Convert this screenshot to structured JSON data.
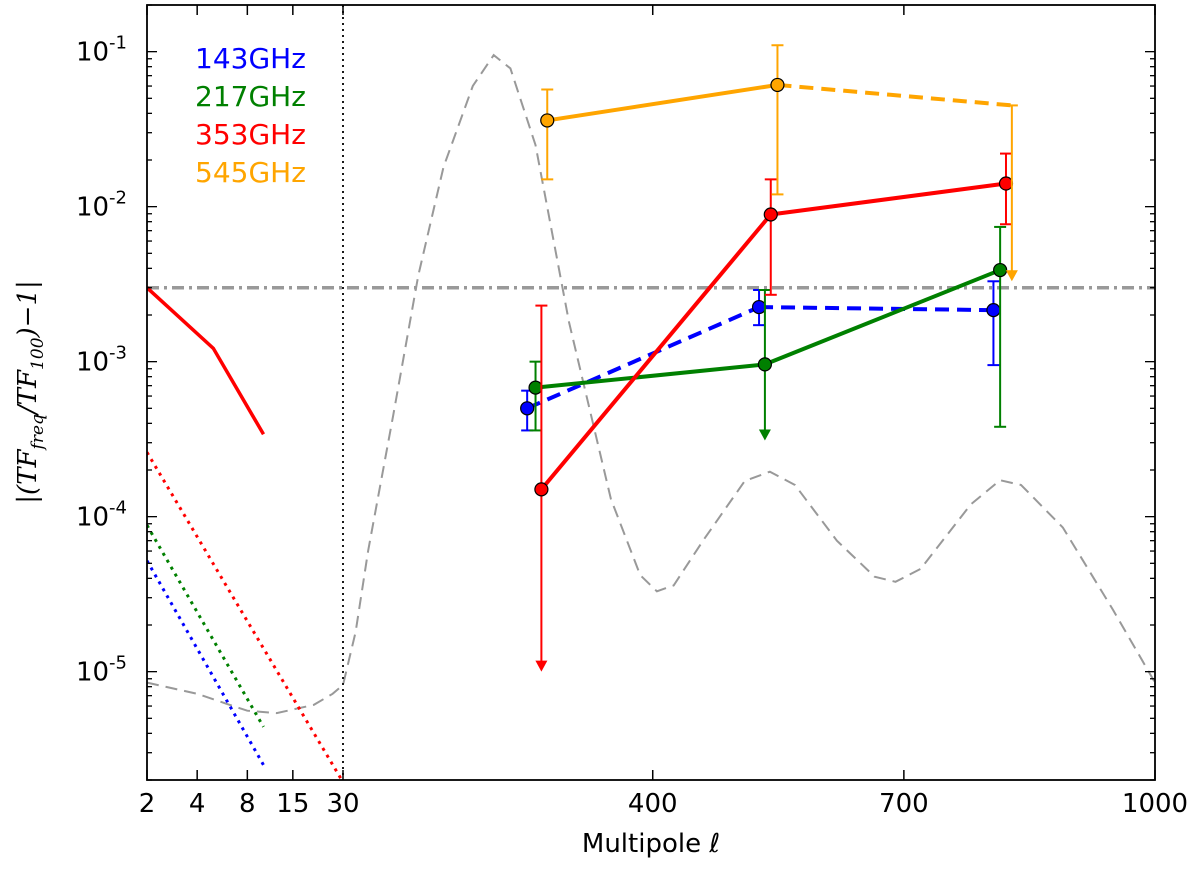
{
  "chart_data": {
    "type": "line",
    "title": "",
    "xlabel": "Multipole ℓ",
    "ylabel": "|(TF_freq/TF_100) − 1|",
    "ylabel_parts": {
      "open": "|(",
      "num": "TF",
      "num_sub": "freq",
      "slash": "/",
      "den": "TF",
      "den_sub": "100",
      "close": ")−1|"
    },
    "x_scale": "piecewise log(2–30) / linear(30–1000)",
    "xlim": [
      2,
      1000
    ],
    "ylim": [
      2e-06,
      0.2
    ],
    "y_scale": "log",
    "x_ticks": [
      {
        "value": 2,
        "label": "2"
      },
      {
        "value": 4,
        "label": "4"
      },
      {
        "value": 8,
        "label": "8"
      },
      {
        "value": 15,
        "label": "15"
      },
      {
        "value": 30,
        "label": "30"
      },
      {
        "value": 400,
        "label": "400"
      },
      {
        "value": 700,
        "label": "700"
      },
      {
        "value": 1000,
        "label": "1000"
      }
    ],
    "y_ticks": [
      {
        "value": 0.1,
        "base": "10",
        "exp": "-1"
      },
      {
        "value": 0.01,
        "base": "10",
        "exp": "-2"
      },
      {
        "value": 0.001,
        "base": "10",
        "exp": "-3"
      },
      {
        "value": 0.0001,
        "base": "10",
        "exp": "-4"
      },
      {
        "value": 1e-05,
        "base": "10",
        "exp": "-5"
      }
    ],
    "legend": [
      {
        "label": "143GHz",
        "color": "#0000ff"
      },
      {
        "label": "217GHz",
        "color": "#008000"
      },
      {
        "label": "353GHz",
        "color": "#ff0000"
      },
      {
        "label": "545GHz",
        "color": "#ffa500"
      }
    ],
    "threshold": {
      "value": 0.003,
      "color": "#999999",
      "style": "dashdot"
    },
    "lowell_divider": {
      "x": 30,
      "color": "#000000",
      "style": "dotted"
    },
    "series": [
      {
        "name": "143GHz",
        "color": "#0000ff",
        "style": "dashed",
        "points": [
          {
            "x": 250,
            "y": 0.0005,
            "lo": 0.00036,
            "hi": 0.00065
          },
          {
            "x": 527,
            "y": 0.00225,
            "lo": 0.00172,
            "hi": 0.0029
          },
          {
            "x": 807,
            "y": 0.00215,
            "lo": 0.00095,
            "hi": 0.0033
          }
        ]
      },
      {
        "name": "217GHz",
        "color": "#008000",
        "style": "solid",
        "points": [
          {
            "x": 260,
            "y": 0.00068,
            "lo": 0.00036,
            "hi": 0.001
          },
          {
            "x": 534,
            "y": 0.00096,
            "upper_limit": true,
            "lo": 0.00031,
            "hi": 0.0029
          },
          {
            "x": 815,
            "y": 0.0039,
            "lo": 0.00038,
            "hi": 0.0074
          }
        ]
      },
      {
        "name": "353GHz",
        "color": "#ff0000",
        "style": "solid",
        "points": [
          {
            "x": 267,
            "y": 0.00015,
            "upper_limit": true,
            "lo": 1e-05,
            "hi": 0.0023
          },
          {
            "x": 541,
            "y": 0.0089,
            "lo": 0.0027,
            "hi": 0.015
          },
          {
            "x": 822,
            "y": 0.0141,
            "lo": 0.0077,
            "hi": 0.022
          }
        ]
      },
      {
        "name": "545GHz",
        "color": "#ffa500",
        "segment_styles": [
          "solid",
          "dashed"
        ],
        "points": [
          {
            "x": 274,
            "y": 0.036,
            "lo": 0.015,
            "hi": 0.057
          },
          {
            "x": 549,
            "y": 0.061,
            "lo": 0.012,
            "hi": 0.11
          },
          {
            "x": 829,
            "y": 0.045,
            "no_marker": true,
            "upper_limit": true,
            "lo": 0.0033,
            "hi": 0.045
          }
        ]
      }
    ],
    "lowell_lines": [
      {
        "name": "353GHz low-ℓ",
        "color": "#ff0000",
        "style": "solid",
        "x": [
          2,
          5,
          10
        ],
        "y": [
          0.003,
          0.00122,
          0.00034
        ]
      },
      {
        "name": "353GHz low-ℓ model",
        "color": "#ff0000",
        "style": "dotted",
        "x": [
          2,
          31
        ],
        "y": [
          0.00026,
          1.9e-06
        ]
      },
      {
        "name": "217GHz low-ℓ model",
        "color": "#008000",
        "style": "dotted",
        "x": [
          2,
          10
        ],
        "y": [
          8.8e-05,
          4.4e-06
        ]
      },
      {
        "name": "143GHz low-ℓ model",
        "color": "#0000ff",
        "style": "dotted",
        "x": [
          2,
          10
        ],
        "y": [
          5.2e-05,
          2.5e-06
        ]
      }
    ],
    "gray_curve": {
      "name": "spectrum template",
      "color": "#999999",
      "style": "dashed",
      "points": [
        [
          2,
          8.5e-06
        ],
        [
          4,
          7.2e-06
        ],
        [
          6,
          6.2e-06
        ],
        [
          8,
          5.6e-06
        ],
        [
          12,
          5.4e-06
        ],
        [
          20,
          6.1e-06
        ],
        [
          26,
          7.2e-06
        ],
        [
          30,
          8.2e-06
        ],
        [
          45,
          1.8e-05
        ],
        [
          60,
          6e-05
        ],
        [
          90,
          0.00045
        ],
        [
          120,
          0.0036
        ],
        [
          150,
          0.018
        ],
        [
          185,
          0.06
        ],
        [
          210,
          0.095
        ],
        [
          230,
          0.078
        ],
        [
          260,
          0.025
        ],
        [
          300,
          0.0018
        ],
        [
          350,
          0.00013
        ],
        [
          385,
          4.2e-05
        ],
        [
          405,
          3.3e-05
        ],
        [
          425,
          3.6e-05
        ],
        [
          460,
          7e-05
        ],
        [
          510,
          0.00017
        ],
        [
          540,
          0.000195
        ],
        [
          570,
          0.00016
        ],
        [
          620,
          7e-05
        ],
        [
          665,
          4.1e-05
        ],
        [
          690,
          3.8e-05
        ],
        [
          720,
          4.6e-05
        ],
        [
          780,
          0.00012
        ],
        [
          815,
          0.000172
        ],
        [
          840,
          0.00016
        ],
        [
          890,
          8.5e-05
        ],
        [
          950,
          2.5e-05
        ],
        [
          1000,
          8.5e-06
        ]
      ]
    }
  }
}
